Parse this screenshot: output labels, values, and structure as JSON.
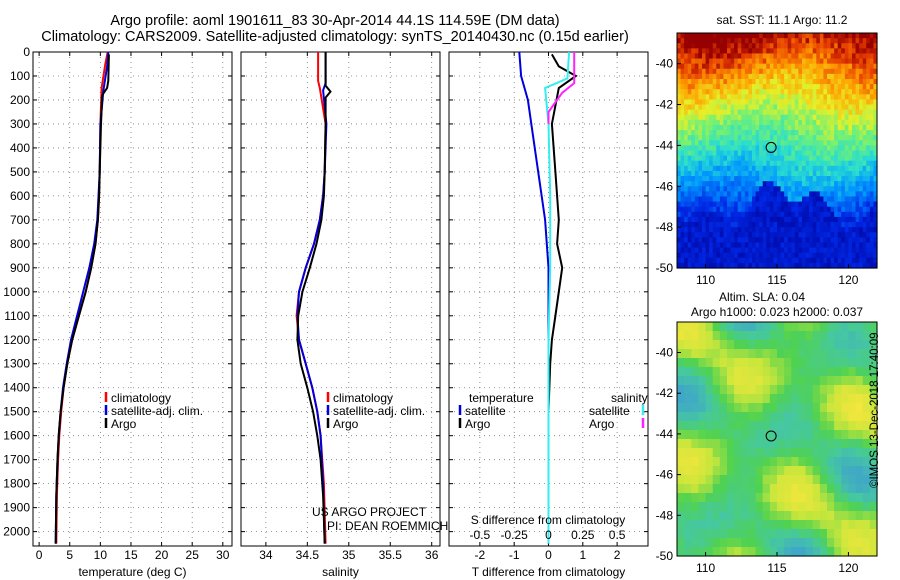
{
  "header": {
    "title1": "Argo profile: aoml 1901611_83 30-Apr-2014 44.1S 114.59E (DM data)",
    "title2": "Climatology: CARS2009. Satellite-adjusted climatology: synTS_20140430.nc (0.15d earlier)"
  },
  "colors": {
    "climatology": "#ff0000",
    "satellite": "#0000dd",
    "argo": "#000000",
    "sat_salinity": "#33eeee",
    "argo_salinity": "#ff22ff"
  },
  "chart_data": [
    {
      "type": "line",
      "id": "temperature",
      "xlabel": "temperature (deg C)",
      "ylabel": "",
      "xlim": [
        -1,
        31.5
      ],
      "ylim": [
        2060,
        0
      ],
      "xticks": [
        0,
        5,
        10,
        15,
        20,
        25,
        30
      ],
      "yticks": [
        0,
        100,
        200,
        300,
        400,
        500,
        600,
        700,
        800,
        900,
        1000,
        1100,
        1200,
        1300,
        1400,
        1500,
        1600,
        1700,
        1800,
        1900,
        2000
      ],
      "legend": [
        "climatology",
        "satellite-adj. clim.",
        "Argo"
      ],
      "series": [
        {
          "name": "climatology",
          "color": "#ff0000",
          "x": [
            11.2,
            10.8,
            10.2,
            10.0,
            9.9,
            9.8,
            9.6,
            9.2,
            8.5,
            7.6,
            6.5,
            5.4,
            4.6,
            4.0,
            3.6,
            3.3,
            3.1,
            2.9,
            2.8
          ],
          "y": [
            0,
            50,
            150,
            300,
            500,
            600,
            700,
            800,
            900,
            1000,
            1100,
            1200,
            1300,
            1400,
            1500,
            1600,
            1700,
            1850,
            2050
          ]
        },
        {
          "name": "satellite-adj. clim.",
          "color": "#0000dd",
          "x": [
            11.3,
            11.1,
            10.5,
            10.0,
            9.9,
            9.7,
            9.5,
            9.0,
            8.2,
            7.2,
            6.2,
            5.2,
            4.5,
            3.9,
            3.5,
            3.2,
            3.0,
            2.8,
            2.7
          ],
          "y": [
            0,
            60,
            160,
            300,
            500,
            600,
            700,
            800,
            900,
            1000,
            1100,
            1200,
            1300,
            1400,
            1500,
            1600,
            1700,
            1850,
            2050
          ]
        },
        {
          "name": "Argo",
          "color": "#000000",
          "x": [
            11.4,
            11.3,
            11.1,
            10.3,
            10.1,
            9.9,
            9.8,
            9.6,
            9.2,
            8.5,
            7.6,
            6.5,
            5.4,
            4.6,
            4.0,
            3.5,
            3.2,
            3.0,
            2.8,
            2.7
          ],
          "y": [
            10,
            120,
            150,
            180,
            300,
            500,
            600,
            700,
            800,
            900,
            1000,
            1100,
            1200,
            1300,
            1400,
            1500,
            1600,
            1700,
            1850,
            2050
          ]
        }
      ]
    },
    {
      "type": "line",
      "id": "salinity",
      "xlabel": "salinity",
      "ylabel": "",
      "xlim": [
        33.7,
        36.1
      ],
      "ylim": [
        2060,
        0
      ],
      "xticks": [
        34,
        34.5,
        35,
        35.5,
        36
      ],
      "xticklabels": [
        "34",
        "34.5",
        "35",
        "35.5",
        "36"
      ],
      "legend": [
        "climatology",
        "satellite-adj. clim.",
        "Argo"
      ],
      "series": [
        {
          "name": "climatology",
          "color": "#ff0000",
          "x": [
            34.63,
            34.63,
            34.65,
            34.72,
            34.71,
            34.69,
            34.65,
            34.58,
            34.48,
            34.4,
            34.37,
            34.4,
            34.48,
            34.56,
            34.62,
            34.66,
            34.7,
            34.72
          ],
          "y": [
            0,
            120,
            150,
            300,
            500,
            600,
            700,
            800,
            900,
            1000,
            1100,
            1200,
            1300,
            1400,
            1500,
            1600,
            1800,
            2050
          ]
        },
        {
          "name": "satellite-adj. clim.",
          "color": "#0000dd",
          "x": [
            34.72,
            34.72,
            34.69,
            34.73,
            34.71,
            34.69,
            34.65,
            34.58,
            34.48,
            34.4,
            34.38,
            34.4,
            34.48,
            34.56,
            34.62,
            34.66,
            34.69,
            34.71
          ],
          "y": [
            0,
            130,
            160,
            300,
            500,
            600,
            700,
            800,
            900,
            1000,
            1100,
            1200,
            1300,
            1400,
            1500,
            1600,
            1800,
            2050
          ]
        },
        {
          "name": "Argo",
          "color": "#000000",
          "x": [
            34.72,
            34.72,
            34.78,
            34.72,
            34.72,
            34.71,
            34.7,
            34.67,
            34.61,
            34.53,
            34.44,
            34.39,
            34.38,
            34.42,
            34.5,
            34.57,
            34.62,
            34.66,
            34.69,
            34.71
          ],
          "y": [
            0,
            140,
            165,
            190,
            300,
            500,
            600,
            700,
            800,
            900,
            1000,
            1100,
            1200,
            1300,
            1400,
            1500,
            1600,
            1700,
            1850,
            2050
          ]
        }
      ],
      "annotations": [
        "US ARGO PROJECT",
        "PI: DEAN ROEMMICH"
      ]
    },
    {
      "type": "line",
      "id": "difference",
      "xlabel": "T difference from climatology",
      "xlabel2": "S difference from climatology",
      "xlim": [
        -2.9,
        2.9
      ],
      "ylim": [
        2060,
        0
      ],
      "xticks": [
        -2,
        -1,
        0,
        1,
        2
      ],
      "xticklabels": [
        "-2",
        "-1",
        "0",
        "1",
        "2"
      ],
      "xticks2": [
        -0.5,
        -0.25,
        0,
        0.25,
        0.5
      ],
      "xticklabels2": [
        "-0.5",
        "-0.25",
        "0",
        "0.25",
        "0.5"
      ],
      "legend_left_title": "temperature",
      "legend_right_title": "salinity",
      "legend_left": [
        "satellite",
        "Argo"
      ],
      "legend_right": [
        "satellite",
        "Argo"
      ],
      "series": [
        {
          "name": "T satellite",
          "color": "#0000dd",
          "x": [
            -0.85,
            -0.8,
            -0.6,
            -0.5,
            -0.3,
            -0.1,
            0.0,
            0.0,
            0.0,
            0.0
          ],
          "y": [
            0,
            100,
            200,
            300,
            500,
            700,
            900,
            1100,
            1500,
            2050
          ]
        },
        {
          "name": "T Argo",
          "color": "#000000",
          "x": [
            0.1,
            0.3,
            0.8,
            0.3,
            0.1,
            0.2,
            0.3,
            0.25,
            0.4,
            0.3,
            0.2,
            0.1,
            0.05,
            0.0,
            0.0
          ],
          "y": [
            10,
            60,
            100,
            150,
            300,
            500,
            700,
            800,
            900,
            1000,
            1100,
            1200,
            1300,
            1500,
            2050
          ]
        },
        {
          "name": "S satellite",
          "color": "#33eeee",
          "x": [
            0.6,
            0.55,
            -0.1,
            0.0,
            0.05,
            0.05,
            0.0,
            0.0,
            0.0
          ],
          "y": [
            0,
            110,
            150,
            300,
            600,
            900,
            1200,
            1600,
            2050
          ]
        },
        {
          "name": "S Argo",
          "color": "#ff22ff",
          "x": [
            0.75,
            0.75,
            0.4,
            0.0,
            0.0
          ],
          "y": [
            0,
            130,
            170,
            250,
            300
          ]
        }
      ]
    },
    {
      "type": "heatmap",
      "id": "sst_map",
      "title": "sat. SST: 11.1 Argo: 11.2",
      "xlim": [
        108,
        122
      ],
      "ylim": [
        -50,
        -38.5
      ],
      "xticks": [
        110,
        115,
        120
      ],
      "yticks": [
        -40,
        -42,
        -44,
        -46,
        -48,
        -50
      ],
      "marker": {
        "lon": 114.59,
        "lat": -44.1
      }
    },
    {
      "type": "heatmap",
      "id": "sla_map",
      "title1": "Altim. SLA: 0.04",
      "title2": "Argo h1000: 0.023 h2000: 0.037",
      "xlim": [
        108,
        122
      ],
      "ylim": [
        -50,
        -38.5
      ],
      "xticks": [
        110,
        115,
        120
      ],
      "yticks": [
        -40,
        -42,
        -44,
        -46,
        -48,
        -50
      ],
      "marker": {
        "lon": 114.59,
        "lat": -44.1
      }
    }
  ],
  "side_label": "©IMOS 13-Dec-2018 17:40:09"
}
